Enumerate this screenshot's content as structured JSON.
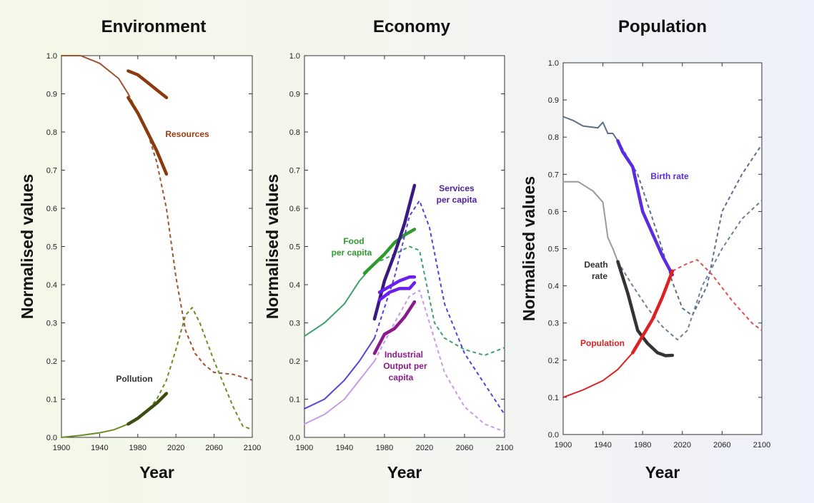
{
  "chart_data": [
    {
      "type": "line",
      "title": "Environment",
      "xlabel": "Year",
      "ylabel": "Normalised values",
      "xlim": [
        1900,
        2100
      ],
      "ylim": [
        0,
        1.0
      ],
      "xticks": [
        "1900",
        "1940",
        "1980",
        "2020",
        "2060",
        "2100"
      ],
      "yticks": [
        "0.0",
        "0.1",
        "0.2",
        "0.3",
        "0.4",
        "0.5",
        "0.6",
        "0.7",
        "0.8",
        "0.9",
        "1.0"
      ],
      "annotations": [
        {
          "text": "Resources",
          "color": "#a03a10"
        },
        {
          "text": "Pollution",
          "color": "#333333"
        }
      ],
      "series": [
        {
          "color": "#a0522d",
          "style": "thin",
          "points": [
            [
              1900,
              1.0
            ],
            [
              1920,
              1.0
            ],
            [
              1940,
              0.98
            ],
            [
              1960,
              0.94
            ],
            [
              1970,
              0.9
            ]
          ]
        },
        {
          "color": "#a0522d",
          "style": "dashed",
          "points": [
            [
              1970,
              0.9
            ],
            [
              1990,
              0.8
            ],
            [
              2000,
              0.72
            ],
            [
              2010,
              0.6
            ],
            [
              2020,
              0.42
            ],
            [
              2030,
              0.28
            ],
            [
              2040,
              0.22
            ],
            [
              2050,
              0.19
            ],
            [
              2060,
              0.17
            ],
            [
              2080,
              0.165
            ],
            [
              2100,
              0.15
            ]
          ]
        },
        {
          "color": "#8b3a0e",
          "style": "thick",
          "points": [
            [
              1970,
              0.89
            ],
            [
              1980,
              0.85
            ],
            [
              1990,
              0.8
            ],
            [
              2000,
              0.75
            ],
            [
              2010,
              0.69
            ]
          ]
        },
        {
          "color": "#8b3a0e",
          "style": "thick",
          "points": [
            [
              1970,
              0.96
            ],
            [
              1980,
              0.95
            ],
            [
              1990,
              0.93
            ],
            [
              2000,
              0.91
            ],
            [
              2010,
              0.89
            ]
          ]
        },
        {
          "color": "#6b8e23",
          "style": "thin",
          "points": [
            [
              1900,
              0.0
            ],
            [
              1920,
              0.005
            ],
            [
              1940,
              0.012
            ],
            [
              1955,
              0.02
            ],
            [
              1970,
              0.035
            ]
          ]
        },
        {
          "color": "#6b8e23",
          "style": "dashed",
          "points": [
            [
              1970,
              0.035
            ],
            [
              1990,
              0.07
            ],
            [
              2000,
              0.1
            ],
            [
              2010,
              0.15
            ],
            [
              2020,
              0.23
            ],
            [
              2030,
              0.32
            ],
            [
              2037,
              0.34
            ],
            [
              2045,
              0.3
            ],
            [
              2060,
              0.2
            ],
            [
              2080,
              0.08
            ],
            [
              2090,
              0.03
            ],
            [
              2100,
              0.02
            ]
          ]
        },
        {
          "color": "#3d4d12",
          "style": "thick",
          "points": [
            [
              1970,
              0.035
            ],
            [
              1980,
              0.05
            ],
            [
              1990,
              0.07
            ],
            [
              2000,
              0.09
            ],
            [
              2010,
              0.115
            ]
          ]
        }
      ]
    },
    {
      "type": "line",
      "title": "Economy",
      "xlabel": "Year",
      "ylabel": "Normalised values",
      "xlim": [
        1900,
        2100
      ],
      "ylim": [
        0,
        1.0
      ],
      "xticks": [
        "1900",
        "1940",
        "1980",
        "2020",
        "2060",
        "2100"
      ],
      "yticks": [
        "0.0",
        "0.1",
        "0.2",
        "0.3",
        "0.4",
        "0.5",
        "0.6",
        "0.7",
        "0.8",
        "0.9",
        "1.0"
      ],
      "annotations": [
        {
          "text": "Services",
          "color": "#4b1fa0"
        },
        {
          "text": "per capita",
          "color": "#4b1fa0"
        },
        {
          "text": "Food",
          "color": "#2e9a2e"
        },
        {
          "text": "per capita",
          "color": "#2e9a2e"
        },
        {
          "text": "Industrial",
          "color": "#8b1a8b"
        },
        {
          "text": "Output per",
          "color": "#8b1a8b"
        },
        {
          "text": "capita",
          "color": "#8b1a8b"
        }
      ],
      "series": [
        {
          "color": "#3ea06a",
          "style": "thin",
          "points": [
            [
              1900,
              0.265
            ],
            [
              1920,
              0.3
            ],
            [
              1940,
              0.35
            ],
            [
              1955,
              0.41
            ],
            [
              1970,
              0.455
            ]
          ]
        },
        {
          "color": "#3ea06a",
          "style": "dashed",
          "points": [
            [
              1970,
              0.455
            ],
            [
              1990,
              0.48
            ],
            [
              2005,
              0.5
            ],
            [
              2015,
              0.49
            ],
            [
              2030,
              0.3
            ],
            [
              2040,
              0.26
            ],
            [
              2060,
              0.23
            ],
            [
              2080,
              0.215
            ],
            [
              2100,
              0.235
            ]
          ]
        },
        {
          "color": "#2e9a2e",
          "style": "thick",
          "points": [
            [
              1960,
              0.43
            ],
            [
              1970,
              0.455
            ],
            [
              1980,
              0.48
            ],
            [
              1990,
              0.51
            ],
            [
              2000,
              0.53
            ],
            [
              2010,
              0.545
            ]
          ]
        },
        {
          "color": "#5b3fd8",
          "style": "thin",
          "points": [
            [
              1900,
              0.075
            ],
            [
              1920,
              0.1
            ],
            [
              1940,
              0.15
            ],
            [
              1955,
              0.2
            ],
            [
              1970,
              0.26
            ]
          ]
        },
        {
          "color": "#5b3fd8",
          "style": "dashed",
          "points": [
            [
              1970,
              0.26
            ],
            [
              1990,
              0.42
            ],
            [
              2005,
              0.58
            ],
            [
              2015,
              0.62
            ],
            [
              2025,
              0.55
            ],
            [
              2040,
              0.35
            ],
            [
              2060,
              0.22
            ],
            [
              2080,
              0.14
            ],
            [
              2100,
              0.06
            ]
          ]
        },
        {
          "color": "#3a1a80",
          "style": "thick",
          "points": [
            [
              1970,
              0.31
            ],
            [
              1980,
              0.41
            ],
            [
              1990,
              0.48
            ],
            [
              2000,
              0.56
            ],
            [
              2010,
              0.66
            ]
          ]
        },
        {
          "color": "#6a1ff0",
          "style": "thick",
          "points": [
            [
              1975,
              0.36
            ],
            [
              1985,
              0.38
            ],
            [
              1995,
              0.39
            ],
            [
              2005,
              0.39
            ],
            [
              2010,
              0.405
            ]
          ]
        },
        {
          "color": "#6a1ff0",
          "style": "thick",
          "points": [
            [
              1975,
              0.38
            ],
            [
              1985,
              0.395
            ],
            [
              1995,
              0.41
            ],
            [
              2005,
              0.42
            ],
            [
              2010,
              0.42
            ]
          ]
        },
        {
          "color": "#c89be8",
          "style": "thin",
          "points": [
            [
              1900,
              0.035
            ],
            [
              1920,
              0.06
            ],
            [
              1940,
              0.1
            ],
            [
              1955,
              0.15
            ],
            [
              1970,
              0.2
            ]
          ]
        },
        {
          "color": "#c89be8",
          "style": "dashed",
          "points": [
            [
              1970,
              0.2
            ],
            [
              1990,
              0.3
            ],
            [
              2005,
              0.37
            ],
            [
              2015,
              0.385
            ],
            [
              2025,
              0.3
            ],
            [
              2040,
              0.17
            ],
            [
              2060,
              0.08
            ],
            [
              2080,
              0.035
            ],
            [
              2100,
              0.015
            ]
          ]
        },
        {
          "color": "#8b1a8b",
          "style": "thick",
          "points": [
            [
              1970,
              0.22
            ],
            [
              1980,
              0.27
            ],
            [
              1990,
              0.285
            ],
            [
              2000,
              0.315
            ],
            [
              2010,
              0.355
            ]
          ]
        }
      ]
    },
    {
      "type": "line",
      "title": "Population",
      "xlabel": "Year",
      "ylabel": "Normalised values",
      "xlim": [
        1900,
        2100
      ],
      "ylim": [
        0,
        1.0
      ],
      "xticks": [
        "1900",
        "1940",
        "1980",
        "2020",
        "2060",
        "2100"
      ],
      "yticks": [
        "0.0",
        "0.1",
        "0.2",
        "0.3",
        "0.4",
        "0.5",
        "0.6",
        "0.7",
        "0.8",
        "0.9",
        "1.0"
      ],
      "annotations": [
        {
          "text": "Birth rate",
          "color": "#5a2be0"
        },
        {
          "text": "Death",
          "color": "#333333"
        },
        {
          "text": "rate",
          "color": "#333333"
        },
        {
          "text": "Population",
          "color": "#e02020"
        }
      ],
      "series": [
        {
          "color": "#5b6e8c",
          "style": "thin",
          "points": [
            [
              1900,
              0.855
            ],
            [
              1910,
              0.845
            ],
            [
              1920,
              0.83
            ],
            [
              1935,
              0.825
            ],
            [
              1940,
              0.84
            ],
            [
              1945,
              0.81
            ],
            [
              1950,
              0.81
            ],
            [
              1955,
              0.79
            ]
          ]
        },
        {
          "color": "#5b6e8c",
          "style": "dashed",
          "points": [
            [
              1955,
              0.79
            ],
            [
              1975,
              0.7
            ],
            [
              1995,
              0.54
            ],
            [
              2010,
              0.41
            ],
            [
              2020,
              0.34
            ],
            [
              2030,
              0.32
            ],
            [
              2045,
              0.4
            ],
            [
              2060,
              0.6
            ],
            [
              2080,
              0.7
            ],
            [
              2100,
              0.78
            ]
          ]
        },
        {
          "color": "#5a2be0",
          "style": "thick",
          "points": [
            [
              1955,
              0.79
            ],
            [
              1960,
              0.76
            ],
            [
              1970,
              0.72
            ],
            [
              1980,
              0.6
            ],
            [
              1990,
              0.54
            ],
            [
              2000,
              0.48
            ],
            [
              2010,
              0.43
            ]
          ]
        },
        {
          "color": "#999999",
          "style": "thin",
          "points": [
            [
              1900,
              0.68
            ],
            [
              1915,
              0.68
            ],
            [
              1930,
              0.655
            ],
            [
              1940,
              0.625
            ],
            [
              1945,
              0.53
            ],
            [
              1950,
              0.5
            ],
            [
              1955,
              0.465
            ]
          ]
        },
        {
          "color": "#6f7f96",
          "style": "dashed",
          "points": [
            [
              1955,
              0.465
            ],
            [
              1970,
              0.4
            ],
            [
              1985,
              0.34
            ],
            [
              2000,
              0.29
            ],
            [
              2015,
              0.255
            ],
            [
              2025,
              0.28
            ],
            [
              2040,
              0.4
            ],
            [
              2060,
              0.5
            ],
            [
              2080,
              0.58
            ],
            [
              2100,
              0.63
            ]
          ]
        },
        {
          "color": "#333333",
          "style": "thick",
          "points": [
            [
              1955,
              0.465
            ],
            [
              1965,
              0.38
            ],
            [
              1975,
              0.28
            ],
            [
              1985,
              0.245
            ],
            [
              1995,
              0.22
            ],
            [
              2003,
              0.212
            ],
            [
              2010,
              0.213
            ]
          ]
        },
        {
          "color": "#e02020",
          "style": "thin",
          "points": [
            [
              1900,
              0.1
            ],
            [
              1920,
              0.12
            ],
            [
              1940,
              0.145
            ],
            [
              1955,
              0.175
            ],
            [
              1970,
              0.22
            ]
          ]
        },
        {
          "color": "#e05050",
          "style": "dashed",
          "points": [
            [
              2010,
              0.44
            ],
            [
              2025,
              0.46
            ],
            [
              2035,
              0.47
            ],
            [
              2050,
              0.43
            ],
            [
              2070,
              0.36
            ],
            [
              2090,
              0.3
            ],
            [
              2100,
              0.28
            ]
          ]
        },
        {
          "color": "#e02020",
          "style": "thick",
          "points": [
            [
              1970,
              0.22
            ],
            [
              1980,
              0.265
            ],
            [
              1990,
              0.31
            ],
            [
              2000,
              0.37
            ],
            [
              2010,
              0.44
            ]
          ]
        }
      ]
    }
  ]
}
